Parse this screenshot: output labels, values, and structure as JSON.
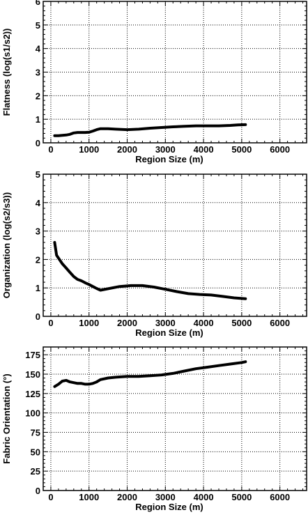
{
  "chart_data": [
    {
      "type": "line",
      "title": "",
      "xlabel": "Region Size (m)",
      "ylabel": "Flatness (log(s1/s2))",
      "xlim": [
        -200,
        6700
      ],
      "ylim": [
        0,
        6
      ],
      "xticks": [
        0,
        1000,
        2000,
        3000,
        4000,
        5000,
        6000
      ],
      "yticks": [
        0,
        1,
        2,
        3,
        4,
        5,
        6
      ],
      "grid": true,
      "series": [
        {
          "x": [
            100,
            200,
            300,
            400,
            500,
            600,
            700,
            800,
            900,
            1000,
            1100,
            1200,
            1300,
            1500,
            1700,
            2000,
            2300,
            2600,
            2900,
            3200,
            3500,
            3800,
            4100,
            4400,
            4700,
            4900,
            5100
          ],
          "y": [
            0.3,
            0.3,
            0.32,
            0.33,
            0.36,
            0.42,
            0.44,
            0.44,
            0.44,
            0.45,
            0.5,
            0.56,
            0.6,
            0.6,
            0.58,
            0.56,
            0.58,
            0.62,
            0.65,
            0.68,
            0.7,
            0.72,
            0.72,
            0.72,
            0.74,
            0.76,
            0.77
          ]
        }
      ]
    },
    {
      "type": "line",
      "title": "",
      "xlabel": "Region Size (m)",
      "ylabel": "Organization (log(s2/s3))",
      "xlim": [
        -200,
        6700
      ],
      "ylim": [
        0,
        5
      ],
      "xticks": [
        0,
        1000,
        2000,
        3000,
        4000,
        5000,
        6000
      ],
      "yticks": [
        0,
        1,
        2,
        3,
        4,
        5
      ],
      "grid": true,
      "series": [
        {
          "x": [
            100,
            150,
            200,
            300,
            400,
            500,
            600,
            700,
            800,
            900,
            1000,
            1100,
            1200,
            1300,
            1500,
            1800,
            2100,
            2400,
            2700,
            3000,
            3300,
            3600,
            3900,
            4200,
            4500,
            4800,
            5100
          ],
          "y": [
            2.6,
            2.15,
            2.05,
            1.85,
            1.7,
            1.55,
            1.4,
            1.3,
            1.25,
            1.18,
            1.12,
            1.05,
            0.98,
            0.92,
            0.97,
            1.05,
            1.08,
            1.08,
            1.03,
            0.95,
            0.87,
            0.8,
            0.77,
            0.75,
            0.7,
            0.65,
            0.62
          ]
        }
      ]
    },
    {
      "type": "line",
      "title": "",
      "xlabel": "Region Size (m)",
      "ylabel": "Fabric Orientation (°)",
      "xlim": [
        -200,
        6700
      ],
      "ylim": [
        0,
        185
      ],
      "xticks": [
        0,
        1000,
        2000,
        3000,
        4000,
        5000,
        6000
      ],
      "yticks": [
        0,
        25,
        50,
        75,
        100,
        125,
        150,
        175
      ],
      "grid": true,
      "series": [
        {
          "x": [
            100,
            200,
            300,
            400,
            500,
            600,
            700,
            800,
            900,
            1000,
            1100,
            1200,
            1300,
            1500,
            1700,
            2000,
            2300,
            2600,
            2900,
            3200,
            3500,
            3800,
            4100,
            4400,
            4700,
            5000,
            5100
          ],
          "y": [
            134,
            137,
            141,
            142,
            140,
            139,
            138,
            138,
            137,
            137,
            138,
            140,
            143,
            145,
            146,
            147,
            147,
            148,
            149,
            151,
            154,
            157,
            159,
            161,
            163,
            165,
            166
          ]
        }
      ]
    }
  ]
}
